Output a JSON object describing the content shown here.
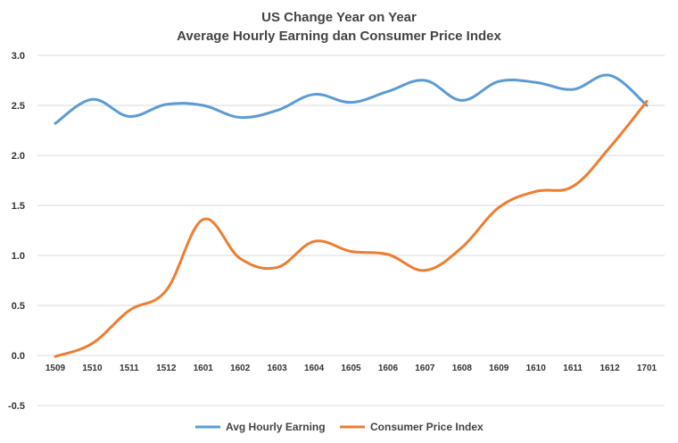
{
  "chart_data": {
    "type": "line",
    "title": [
      "US Change Year on Year",
      "Average Hourly Earning dan Consumer Price Index"
    ],
    "categories": [
      "1509",
      "1510",
      "1511",
      "1512",
      "1601",
      "1602",
      "1603",
      "1604",
      "1605",
      "1606",
      "1607",
      "1608",
      "1609",
      "1610",
      "1611",
      "1612",
      "1701"
    ],
    "series": [
      {
        "name": "Avg Hourly Earning",
        "color": "#5B9BD5",
        "values": [
          2.32,
          2.56,
          2.39,
          2.51,
          2.5,
          2.38,
          2.45,
          2.61,
          2.53,
          2.64,
          2.75,
          2.55,
          2.74,
          2.73,
          2.66,
          2.8,
          2.5
        ]
      },
      {
        "name": "Consumer Price Index",
        "color": "#ED7D31",
        "values": [
          -0.01,
          0.12,
          0.45,
          0.65,
          1.36,
          0.97,
          0.88,
          1.14,
          1.04,
          1.01,
          0.85,
          1.08,
          1.48,
          1.64,
          1.69,
          2.08,
          2.54
        ]
      }
    ],
    "yticks": [
      "3.0",
      "2.5",
      "2.0",
      "1.5",
      "1.0",
      "0.5",
      "0.0",
      "-0.5"
    ],
    "ylim": [
      -0.5,
      3.0
    ],
    "ystep": 0.5,
    "grid": true,
    "legend": "bottom"
  }
}
